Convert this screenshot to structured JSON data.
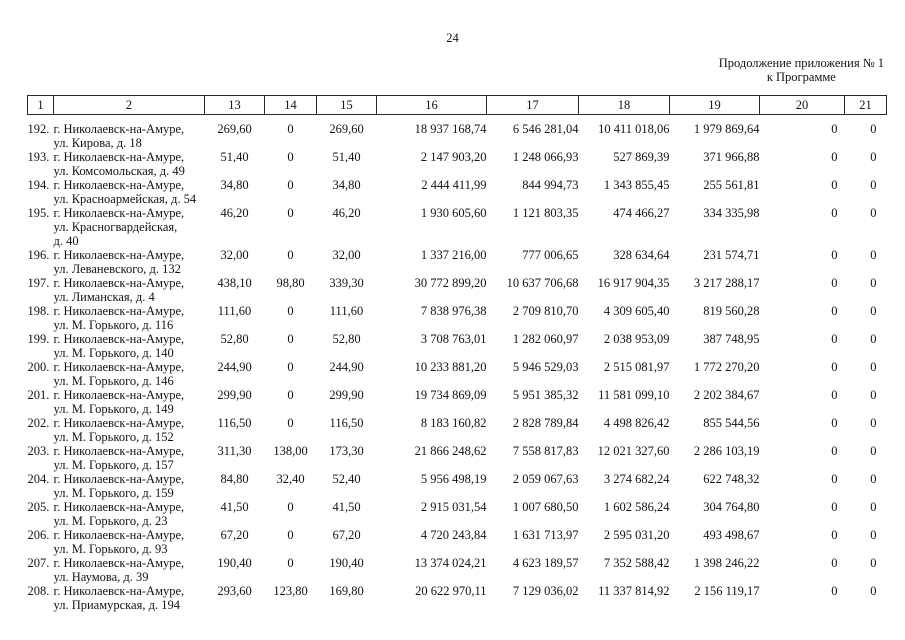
{
  "page": {
    "page_number": "24",
    "continuation_line1": "Продолжение приложения № 1",
    "continuation_line2": "к Программе"
  },
  "table": {
    "column_headers": [
      "1",
      "2",
      "13",
      "14",
      "15",
      "16",
      "17",
      "18",
      "19",
      "20",
      "21"
    ],
    "rows": [
      {
        "num": "192.",
        "address_lines": [
          "г. Николаевск-на-Амуре,",
          "ул. Кирова, д. 18"
        ],
        "values": [
          "269,60",
          "0",
          "269,60",
          "18 937 168,74",
          "6 546 281,04",
          "10 411 018,06",
          "1 979 869,64",
          "0",
          "0"
        ]
      },
      {
        "num": "193.",
        "address_lines": [
          "г. Николаевск-на-Амуре,",
          "ул. Комсомольская, д. 49"
        ],
        "values": [
          "51,40",
          "0",
          "51,40",
          "2 147 903,20",
          "1 248 066,93",
          "527 869,39",
          "371 966,88",
          "0",
          "0"
        ]
      },
      {
        "num": "194.",
        "address_lines": [
          "г. Николаевск-на-Амуре,",
          "ул. Красноармейская, д. 54"
        ],
        "values": [
          "34,80",
          "0",
          "34,80",
          "2 444 411,99",
          "844 994,73",
          "1 343 855,45",
          "255 561,81",
          "0",
          "0"
        ]
      },
      {
        "num": "195.",
        "address_lines": [
          "г. Николаевск-на-Амуре,",
          "ул. Красногвардейская,",
          "д. 40"
        ],
        "values": [
          "46,20",
          "0",
          "46,20",
          "1 930 605,60",
          "1 121 803,35",
          "474 466,27",
          "334 335,98",
          "0",
          "0"
        ]
      },
      {
        "num": "196.",
        "address_lines": [
          "г. Николаевск-на-Амуре,",
          "ул. Леваневского, д. 132"
        ],
        "values": [
          "32,00",
          "0",
          "32,00",
          "1 337 216,00",
          "777 006,65",
          "328 634,64",
          "231 574,71",
          "0",
          "0"
        ]
      },
      {
        "num": "197.",
        "address_lines": [
          "г. Николаевск-на-Амуре,",
          "ул. Лиманская, д. 4"
        ],
        "values": [
          "438,10",
          "98,80",
          "339,30",
          "30 772 899,20",
          "10 637 706,68",
          "16 917 904,35",
          "3 217 288,17",
          "0",
          "0"
        ]
      },
      {
        "num": "198.",
        "address_lines": [
          "г. Николаевск-на-Амуре,",
          "ул. М. Горького, д. 116"
        ],
        "values": [
          "111,60",
          "0",
          "111,60",
          "7 838 976,38",
          "2 709 810,70",
          "4 309 605,40",
          "819 560,28",
          "0",
          "0"
        ]
      },
      {
        "num": "199.",
        "address_lines": [
          "г. Николаевск-на-Амуре,",
          "ул. М. Горького, д. 140"
        ],
        "values": [
          "52,80",
          "0",
          "52,80",
          "3 708 763,01",
          "1 282 060,97",
          "2 038 953,09",
          "387 748,95",
          "0",
          "0"
        ]
      },
      {
        "num": "200.",
        "address_lines": [
          "г. Николаевск-на-Амуре,",
          "ул. М. Горького, д. 146"
        ],
        "values": [
          "244,90",
          "0",
          "244,90",
          "10 233 881,20",
          "5 946 529,03",
          "2 515 081,97",
          "1 772 270,20",
          "0",
          "0"
        ]
      },
      {
        "num": "201.",
        "address_lines": [
          "г. Николаевск-на-Амуре,",
          "ул. М. Горького, д. 149"
        ],
        "values": [
          "299,90",
          "0",
          "299,90",
          "19 734 869,09",
          "5 951 385,32",
          "11 581 099,10",
          "2 202 384,67",
          "0",
          "0"
        ]
      },
      {
        "num": "202.",
        "address_lines": [
          "г. Николаевск-на-Амуре,",
          "ул. М. Горького, д. 152"
        ],
        "values": [
          "116,50",
          "0",
          "116,50",
          "8 183 160,82",
          "2 828 789,84",
          "4 498 826,42",
          "855 544,56",
          "0",
          "0"
        ]
      },
      {
        "num": "203.",
        "address_lines": [
          "г. Николаевск-на-Амуре,",
          "ул. М. Горького, д. 157"
        ],
        "values": [
          "311,30",
          "138,00",
          "173,30",
          "21 866 248,62",
          "7 558 817,83",
          "12 021 327,60",
          "2 286 103,19",
          "0",
          "0"
        ]
      },
      {
        "num": "204.",
        "address_lines": [
          "г. Николаевск-на-Амуре,",
          "ул. М. Горького, д. 159"
        ],
        "values": [
          "84,80",
          "32,40",
          "52,40",
          "5 956 498,19",
          "2 059 067,63",
          "3 274 682,24",
          "622 748,32",
          "0",
          "0"
        ]
      },
      {
        "num": "205.",
        "address_lines": [
          "г. Николаевск-на-Амуре,",
          "ул. М. Горького, д. 23"
        ],
        "values": [
          "41,50",
          "0",
          "41,50",
          "2 915 031,54",
          "1 007 680,50",
          "1 602 586,24",
          "304 764,80",
          "0",
          "0"
        ]
      },
      {
        "num": "206.",
        "address_lines": [
          "г. Николаевск-на-Амуре,",
          "ул. М. Горького, д. 93"
        ],
        "values": [
          "67,20",
          "0",
          "67,20",
          "4 720 243,84",
          "1 631 713,97",
          "2 595 031,20",
          "493 498,67",
          "0",
          "0"
        ]
      },
      {
        "num": "207.",
        "address_lines": [
          "г. Николаевск-на-Амуре,",
          "ул. Наумова, д. 39"
        ],
        "values": [
          "190,40",
          "0",
          "190,40",
          "13 374 024,21",
          "4 623 189,57",
          "7 352 588,42",
          "1 398 246,22",
          "0",
          "0"
        ]
      },
      {
        "num": "208.",
        "address_lines": [
          "г. Николаевск-на-Амуре,",
          "ул. Приамурская, д. 194"
        ],
        "values": [
          "293,60",
          "123,80",
          "169,80",
          "20 622 970,11",
          "7 129 036,02",
          "11 337 814,92",
          "2 156 119,17",
          "0",
          "0"
        ]
      }
    ]
  }
}
